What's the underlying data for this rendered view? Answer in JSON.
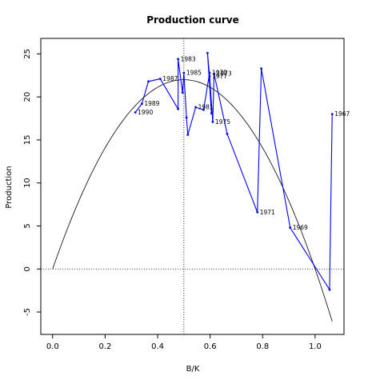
{
  "chart_data": {
    "type": "line",
    "title": "Production curve",
    "xlabel": "B/K",
    "ylabel": "Production",
    "xlim": [
      -0.045,
      1.11
    ],
    "ylim": [
      -7.6,
      26.8
    ],
    "xticks": [
      0.0,
      0.2,
      0.4,
      0.6,
      0.8,
      1.0
    ],
    "yticks": [
      -5,
      0,
      5,
      10,
      15,
      20,
      25
    ],
    "xtick_labels": [
      "0.0",
      "0.2",
      "0.4",
      "0.6",
      "0.8",
      "1.0"
    ],
    "ytick_labels": [
      "-5",
      "0",
      "5",
      "10",
      "15",
      "20",
      "25"
    ],
    "reference_lines": {
      "vertical_x": 0.5,
      "horizontal_y": 0
    },
    "colors": {
      "observed": "#0000ff",
      "curve": "#000000",
      "reference": "#000000"
    },
    "series": [
      {
        "points": [
          {
            "x": 1.065,
            "y": 18.0,
            "label": "1967"
          },
          {
            "x": 1.055,
            "y": -2.4,
            "label": ""
          },
          {
            "x": 0.905,
            "y": 4.8,
            "label": "1969"
          },
          {
            "x": 0.795,
            "y": 23.3,
            "label": ""
          },
          {
            "x": 0.78,
            "y": 6.6,
            "label": "1971"
          },
          {
            "x": 0.665,
            "y": 15.7,
            "label": ""
          },
          {
            "x": 0.615,
            "y": 22.7,
            "label": "1973"
          },
          {
            "x": 0.61,
            "y": 17.1,
            "label": "1975"
          },
          {
            "x": 0.598,
            "y": 22.4,
            "label": "1977"
          },
          {
            "x": 0.59,
            "y": 25.1,
            "label": ""
          },
          {
            "x": 0.605,
            "y": 18.1,
            "label": ""
          },
          {
            "x": 0.598,
            "y": 22.8,
            "label": "1979"
          },
          {
            "x": 0.575,
            "y": 18.5,
            "label": ""
          },
          {
            "x": 0.545,
            "y": 18.8,
            "label": "1981"
          },
          {
            "x": 0.515,
            "y": 15.6,
            "label": ""
          },
          {
            "x": 0.51,
            "y": 17.6,
            "label": ""
          },
          {
            "x": 0.5,
            "y": 22.8,
            "label": "1985"
          },
          {
            "x": 0.495,
            "y": 20.5,
            "label": ""
          },
          {
            "x": 0.478,
            "y": 24.4,
            "label": "1983"
          },
          {
            "x": 0.478,
            "y": 18.6,
            "label": ""
          },
          {
            "x": 0.41,
            "y": 22.1,
            "label": "1987"
          },
          {
            "x": 0.365,
            "y": 21.8,
            "label": ""
          },
          {
            "x": 0.34,
            "y": 19.2,
            "label": "1989"
          },
          {
            "x": 0.315,
            "y": 18.2,
            "label": "1990"
          }
        ]
      },
      {
        "type": "curve",
        "function": "88*x*(1-x)",
        "x_range": [
          0.0,
          1.065
        ]
      }
    ]
  }
}
